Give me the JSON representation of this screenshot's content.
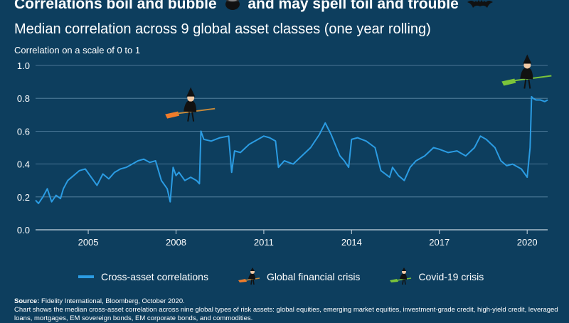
{
  "header": {
    "title_part1": "Correlations boil and bubble",
    "title_part2": "and may spell toil and trouble",
    "subtitle": "Median correlation across 9 global asset classes (one year rolling)"
  },
  "colors": {
    "background": "#0d3e5e",
    "line": "#2b9ce3",
    "grid": "#5f8aa8",
    "gfc_broom": "#f07c2a",
    "covid_broom": "#7bc43a"
  },
  "icons": [
    "cauldron-icon",
    "bat-icon",
    "witch-orange-icon",
    "witch-green-icon"
  ],
  "chart_data": {
    "type": "line",
    "ylabel": "Correlation on a scale of 0 to 1",
    "ylim": [
      0,
      1
    ],
    "xlim": [
      2003.2,
      2020.7
    ],
    "yticks": [
      "0.0",
      "0.2",
      "0.4",
      "0.6",
      "0.8",
      "1.0"
    ],
    "xticks": [
      "2005",
      "2008",
      "2011",
      "2014",
      "2017",
      "2020"
    ],
    "grid": true,
    "annotations": [
      {
        "label": "Global financial crisis",
        "x": 2008.6,
        "y": 0.72
      },
      {
        "label": "Covid-19 crisis",
        "x": 2020.1,
        "y": 0.92
      }
    ],
    "series": [
      {
        "name": "Cross-asset correlations",
        "x": [
          2003.2,
          2003.3,
          2003.45,
          2003.6,
          2003.75,
          2003.9,
          2004.05,
          2004.15,
          2004.3,
          2004.5,
          2004.7,
          2004.9,
          2005.1,
          2005.3,
          2005.5,
          2005.7,
          2005.9,
          2006.1,
          2006.3,
          2006.5,
          2006.7,
          2006.9,
          2007.1,
          2007.3,
          2007.5,
          2007.7,
          2007.8,
          2007.9,
          2008.0,
          2008.1,
          2008.3,
          2008.5,
          2008.7,
          2008.8,
          2008.85,
          2008.95,
          2009.2,
          2009.5,
          2009.8,
          2009.9,
          2010.0,
          2010.2,
          2010.5,
          2010.8,
          2011.0,
          2011.2,
          2011.4,
          2011.5,
          2011.7,
          2012.0,
          2012.3,
          2012.6,
          2012.9,
          2013.1,
          2013.3,
          2013.6,
          2013.75,
          2013.9,
          2014.0,
          2014.2,
          2014.5,
          2014.8,
          2015.0,
          2015.3,
          2015.4,
          2015.6,
          2015.8,
          2016.0,
          2016.2,
          2016.5,
          2016.8,
          2017.0,
          2017.3,
          2017.6,
          2017.9,
          2018.2,
          2018.4,
          2018.6,
          2018.9,
          2019.1,
          2019.3,
          2019.5,
          2019.8,
          2020.0,
          2020.1,
          2020.15,
          2020.2,
          2020.3,
          2020.45,
          2020.6,
          2020.7
        ],
        "values": [
          0.18,
          0.16,
          0.2,
          0.25,
          0.17,
          0.21,
          0.19,
          0.25,
          0.3,
          0.33,
          0.36,
          0.37,
          0.32,
          0.27,
          0.34,
          0.31,
          0.35,
          0.37,
          0.38,
          0.4,
          0.42,
          0.43,
          0.41,
          0.42,
          0.3,
          0.25,
          0.17,
          0.38,
          0.33,
          0.35,
          0.3,
          0.32,
          0.3,
          0.28,
          0.6,
          0.55,
          0.54,
          0.56,
          0.57,
          0.35,
          0.48,
          0.47,
          0.52,
          0.55,
          0.57,
          0.56,
          0.54,
          0.38,
          0.42,
          0.4,
          0.45,
          0.5,
          0.58,
          0.65,
          0.58,
          0.45,
          0.42,
          0.38,
          0.55,
          0.56,
          0.54,
          0.5,
          0.36,
          0.32,
          0.38,
          0.33,
          0.3,
          0.38,
          0.42,
          0.45,
          0.5,
          0.49,
          0.47,
          0.48,
          0.45,
          0.5,
          0.57,
          0.55,
          0.5,
          0.42,
          0.39,
          0.4,
          0.37,
          0.32,
          0.5,
          0.81,
          0.8,
          0.79,
          0.79,
          0.78,
          0.79
        ]
      }
    ]
  },
  "legend": {
    "items": [
      "Cross-asset correlations",
      "Global financial crisis",
      "Covid-19 crisis"
    ]
  },
  "footer": {
    "source_label": "Source:",
    "source_text": "Fidelity International, Bloomberg, October 2020.",
    "note": "Chart shows the median cross-asset correlation across nine global types of risk assets: global equities, emerging market equities, investment-grade credit, high-yield credit, leveraged loans, mortgages, EM sovereign bonds, EM corporate bonds, and commodities."
  }
}
